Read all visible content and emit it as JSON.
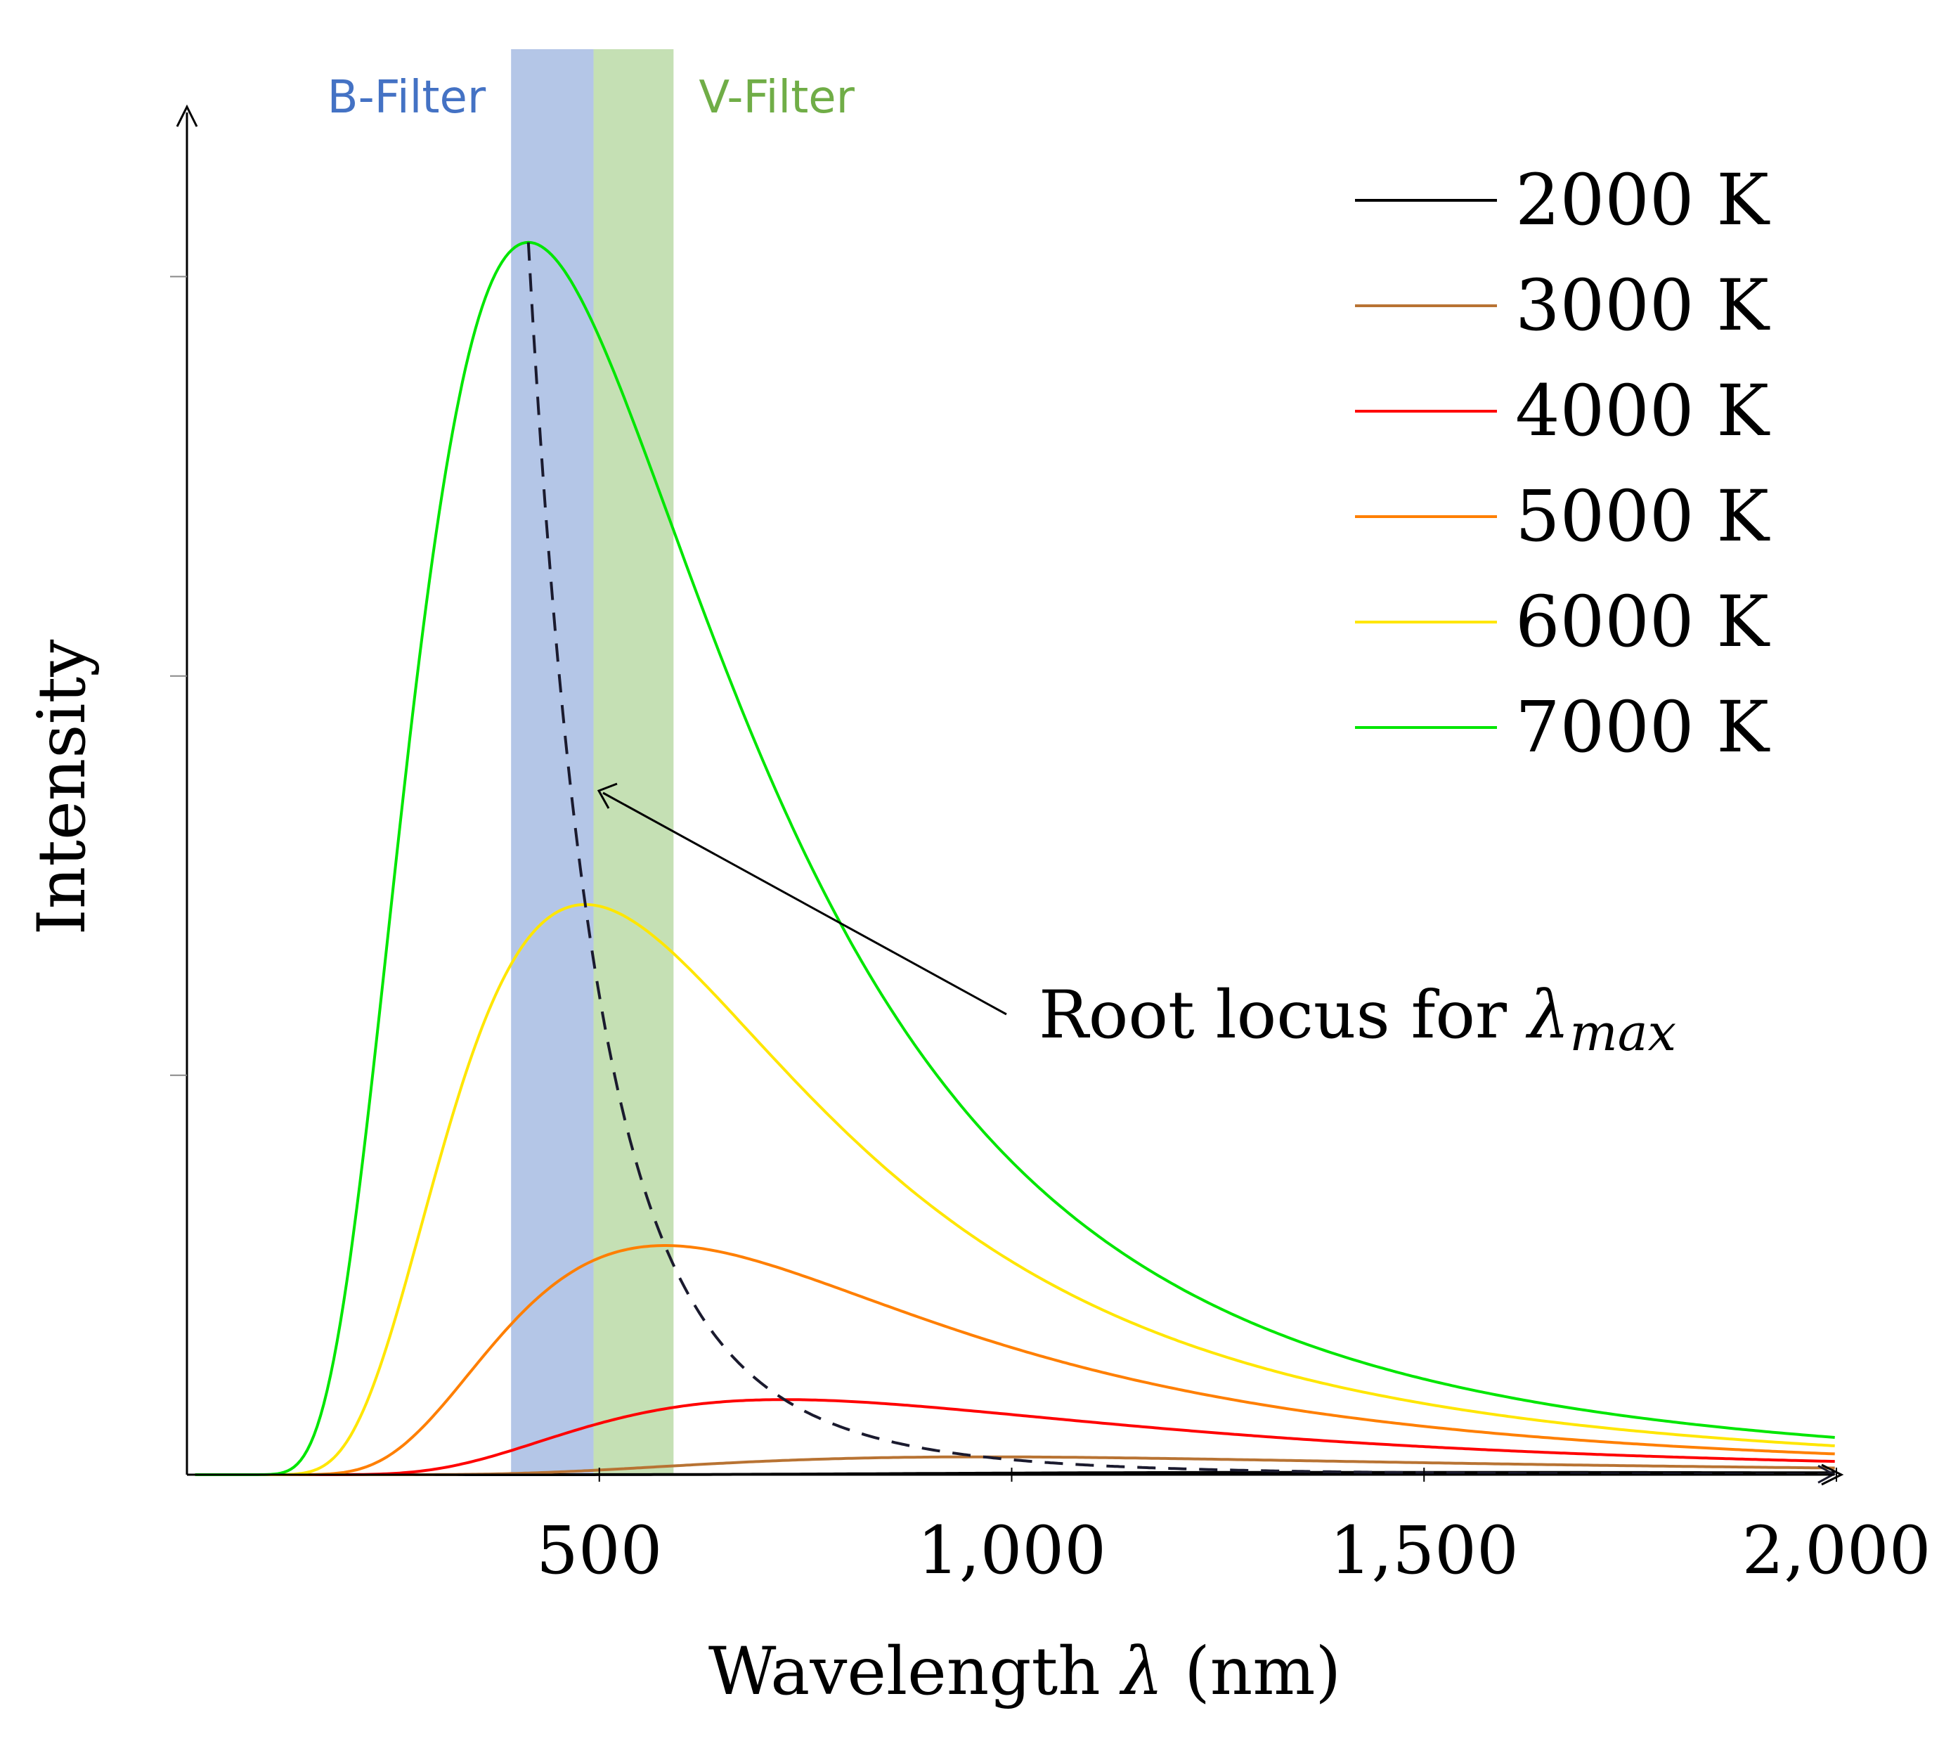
{
  "chart_data": {
    "type": "line",
    "xlabel_prefix": "Wavelength ",
    "xlabel_symbol": "λ",
    "xlabel_suffix": " (nm)",
    "ylabel": "Intensity",
    "xlim": [
      0,
      2000
    ],
    "ylim": [
      0,
      1.0
    ],
    "x_ticks": [
      500,
      1000,
      1500,
      2000
    ],
    "x_tick_labels": [
      "500",
      "1,000",
      "1,500",
      "2,000"
    ],
    "y_ticks": [
      0.2917,
      0.5833,
      0.875
    ],
    "bands": [
      {
        "name": "B-Filter",
        "from": 393,
        "to": 493,
        "color": "#b4c6e7",
        "label_color": "#4472c4"
      },
      {
        "name": "V-Filter",
        "from": 493,
        "to": 590,
        "color": "#c5e0b4",
        "label_color": "#70ad47"
      }
    ],
    "series": [
      {
        "name": "2000 K",
        "temperature": 2000,
        "color": "#000000"
      },
      {
        "name": "3000 K",
        "temperature": 3000,
        "color": "#b87333"
      },
      {
        "name": "4000 K",
        "temperature": 4000,
        "color": "#ff0000"
      },
      {
        "name": "5000 K",
        "temperature": 5000,
        "color": "#ff7f00"
      },
      {
        "name": "6000 K",
        "temperature": 6000,
        "color": "#ffe600"
      },
      {
        "name": "7000 K",
        "temperature": 7000,
        "color": "#00e600"
      }
    ],
    "root_locus": {
      "style": "dashed",
      "color": "#1a1a2e",
      "wien_constant_nm_K": 2897771
    },
    "annotation": {
      "text_prefix": "Root locus for ",
      "symbol": "λ",
      "subscript": "max"
    },
    "legend_position": "top-right",
    "grid": false
  }
}
